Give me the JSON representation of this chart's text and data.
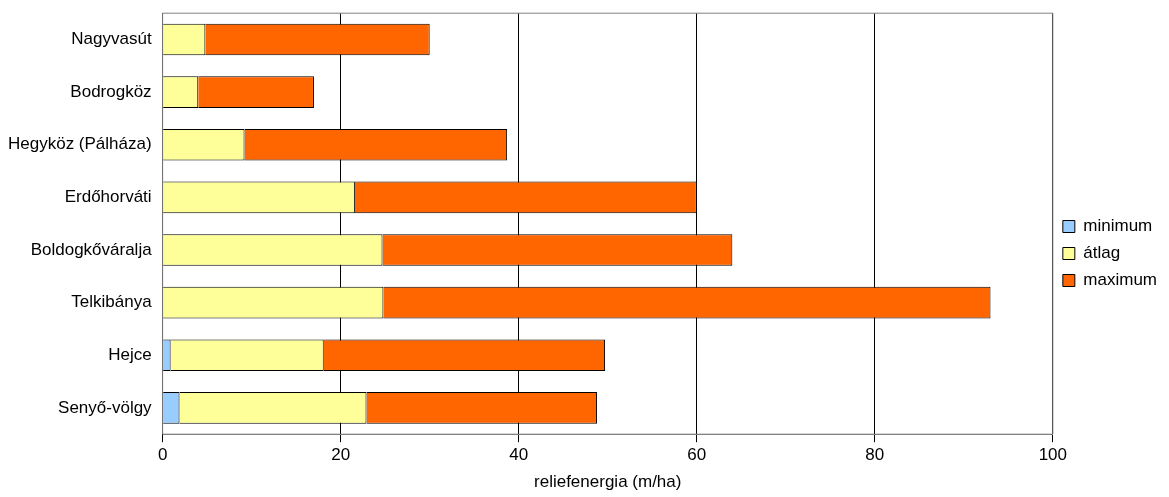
{
  "chart_data": {
    "type": "bar",
    "orientation": "horizontal",
    "stacked": true,
    "xlabel": "reliefenergia (m/ha)",
    "categories": [
      "Nagyvasút",
      "Bodrogköz",
      "Hegyköz (Pálháza)",
      "Erdőhorváti",
      "Boldogkőváralja",
      "Telkibánya",
      "Hejce",
      "Senyő-völgy"
    ],
    "series": [
      {
        "name": "minimum",
        "color": "#99ccff",
        "values": [
          null,
          null,
          null,
          null,
          null,
          null,
          0.9,
          1.9
        ]
      },
      {
        "name": "átlag",
        "color": "#ffff99",
        "values": [
          4.8,
          4,
          9.2,
          21.6,
          24.7,
          24.8,
          17.2,
          21
        ]
      },
      {
        "name": "maximum",
        "color": "#ff6600",
        "values": [
          25.2,
          13,
          29.5,
          38.4,
          39.3,
          68.2,
          31.6,
          25.9
        ]
      }
    ],
    "xlim": [
      0,
      100
    ],
    "xticks": [
      0,
      20,
      40,
      60,
      80,
      100
    ],
    "grid": "x",
    "legend": "right"
  }
}
